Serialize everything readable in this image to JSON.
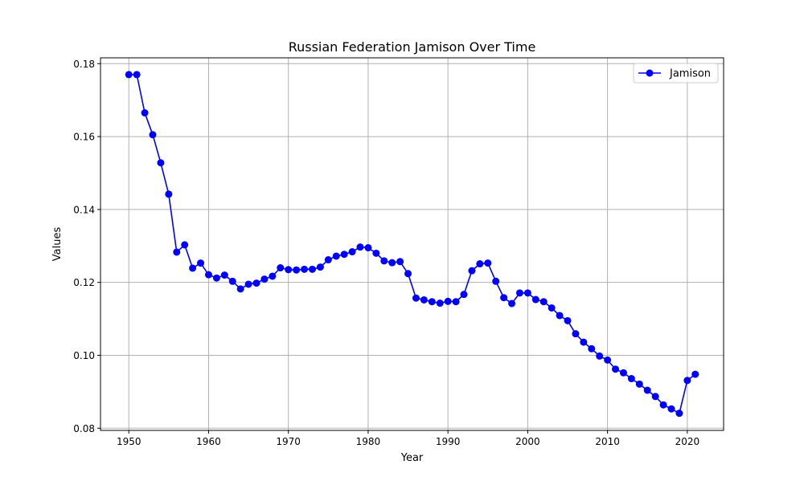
{
  "chart_data": {
    "type": "line",
    "title": "Russian Federation Jamison Over Time",
    "xlabel": "Year",
    "ylabel": "Values",
    "xlim": [
      1946.45,
      2024.55
    ],
    "ylim": [
      0.0794,
      0.1816
    ],
    "xticks": [
      1950,
      1960,
      1970,
      1980,
      1990,
      2000,
      2010,
      2020
    ],
    "yticks": [
      0.08,
      0.1,
      0.12,
      0.14,
      0.16,
      0.18
    ],
    "grid": true,
    "legend_position": "top-right",
    "series": [
      {
        "name": "Jamison",
        "color": "#0000ff",
        "marker": "circle",
        "x": [
          1950,
          1951,
          1952,
          1953,
          1954,
          1955,
          1956,
          1957,
          1958,
          1959,
          1960,
          1961,
          1962,
          1963,
          1964,
          1965,
          1966,
          1967,
          1968,
          1969,
          1970,
          1971,
          1972,
          1973,
          1974,
          1975,
          1976,
          1977,
          1978,
          1979,
          1980,
          1981,
          1982,
          1983,
          1984,
          1985,
          1986,
          1987,
          1988,
          1989,
          1990,
          1991,
          1992,
          1993,
          1994,
          1995,
          1996,
          1997,
          1998,
          1999,
          2000,
          2001,
          2002,
          2003,
          2004,
          2005,
          2006,
          2007,
          2008,
          2009,
          2010,
          2011,
          2012,
          2013,
          2014,
          2015,
          2016,
          2017,
          2018,
          2019,
          2020,
          2021
        ],
        "y": [
          0.177,
          0.177,
          0.1665,
          0.1605,
          0.1528,
          0.1442,
          0.1283,
          0.1303,
          0.1239,
          0.1253,
          0.1221,
          0.1212,
          0.122,
          0.1203,
          0.1182,
          0.1195,
          0.1198,
          0.1209,
          0.1217,
          0.124,
          0.1235,
          0.1234,
          0.1236,
          0.1236,
          0.1242,
          0.1262,
          0.1272,
          0.1277,
          0.1284,
          0.1297,
          0.1295,
          0.128,
          0.1259,
          0.1254,
          0.1257,
          0.1224,
          0.1157,
          0.1152,
          0.1147,
          0.1143,
          0.1148,
          0.1147,
          0.1167,
          0.1232,
          0.1251,
          0.1253,
          0.1203,
          0.1158,
          0.1142,
          0.1171,
          0.1171,
          0.1153,
          0.1147,
          0.113,
          0.1109,
          0.1095,
          0.1059,
          0.1036,
          0.1018,
          0.0998,
          0.0987,
          0.0962,
          0.0952,
          0.0936,
          0.0921,
          0.0904,
          0.0887,
          0.0864,
          0.0853,
          0.0841,
          0.0931,
          0.0948
        ]
      }
    ]
  }
}
